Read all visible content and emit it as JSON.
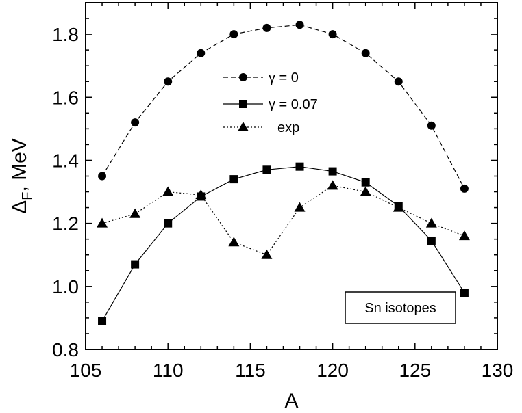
{
  "chart_data": {
    "type": "line",
    "title": "",
    "xlabel": "A",
    "ylabel": "Δ",
    "ylabel_sub": "F",
    "ylabel_suffix": ", MeV",
    "xlim": [
      105,
      130
    ],
    "ylim": [
      0.8,
      1.9
    ],
    "xticks": [
      105,
      110,
      115,
      120,
      125,
      130
    ],
    "yticks": [
      0.8,
      1.0,
      1.2,
      1.4,
      1.6,
      1.8
    ],
    "ytick_labels": [
      "0.8",
      "1.0",
      "1.2",
      "1.4",
      "1.6",
      "1.8"
    ],
    "grid": false,
    "legend_position": "top-center",
    "annotation": "Sn isotopes",
    "series": [
      {
        "name": "γ = 0",
        "marker": "circle",
        "line_style": "dashed",
        "x": [
          106,
          108,
          110,
          112,
          114,
          116,
          118,
          120,
          122,
          124,
          126,
          128
        ],
        "values": [
          1.35,
          1.52,
          1.65,
          1.74,
          1.8,
          1.82,
          1.83,
          1.8,
          1.74,
          1.65,
          1.51,
          1.31
        ]
      },
      {
        "name": "γ = 0.07",
        "marker": "square",
        "line_style": "solid",
        "x": [
          106,
          108,
          110,
          112,
          114,
          116,
          118,
          120,
          122,
          124,
          126,
          128
        ],
        "values": [
          0.89,
          1.07,
          1.2,
          1.285,
          1.34,
          1.37,
          1.38,
          1.365,
          1.33,
          1.255,
          1.145,
          0.98
        ]
      },
      {
        "name": "exp",
        "marker": "triangle",
        "line_style": "dotted",
        "x": [
          106,
          108,
          110,
          112,
          114,
          116,
          118,
          120,
          122,
          124,
          126,
          128
        ],
        "values": [
          1.2,
          1.23,
          1.3,
          1.29,
          1.14,
          1.1,
          1.25,
          1.32,
          1.3,
          1.25,
          1.2,
          1.16
        ]
      }
    ]
  }
}
